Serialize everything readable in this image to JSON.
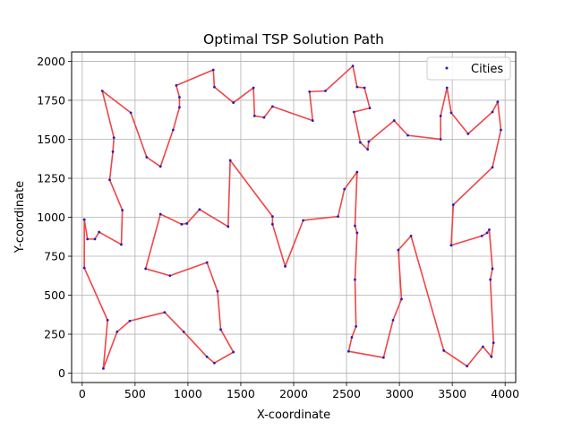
{
  "chart_data": {
    "type": "line",
    "title": "Optimal TSP Solution Path",
    "xlabel": "X-coordinate",
    "ylabel": "Y-coordinate",
    "xlim": [
      -100,
      4100
    ],
    "ylim": [
      -60,
      2060
    ],
    "xticks": [
      0,
      500,
      1000,
      1500,
      2000,
      2500,
      3000,
      3500,
      4000
    ],
    "yticks": [
      0,
      250,
      500,
      750,
      1000,
      1250,
      1500,
      1750,
      2000
    ],
    "grid": true,
    "legend": {
      "position": "upper right",
      "entries": [
        "Cities"
      ]
    },
    "colors": {
      "path": "#f03b3b",
      "cities": "#1f1fbf",
      "grid": "#b0b0b0"
    },
    "series": [
      {
        "name": "Cities",
        "points": [
          [
            20,
            985
          ],
          [
            50,
            860
          ],
          [
            120,
            860
          ],
          [
            160,
            905
          ],
          [
            370,
            825
          ],
          [
            380,
            1045
          ],
          [
            260,
            1240
          ],
          [
            290,
            1420
          ],
          [
            300,
            1510
          ],
          [
            190,
            1810
          ],
          [
            460,
            1670
          ],
          [
            610,
            1385
          ],
          [
            740,
            1325
          ],
          [
            860,
            1560
          ],
          [
            920,
            1705
          ],
          [
            920,
            1770
          ],
          [
            890,
            1845
          ],
          [
            1240,
            1945
          ],
          [
            1250,
            1835
          ],
          [
            1430,
            1735
          ],
          [
            1620,
            1830
          ],
          [
            1630,
            1650
          ],
          [
            1720,
            1640
          ],
          [
            1800,
            1710
          ],
          [
            2180,
            1620
          ],
          [
            2150,
            1805
          ],
          [
            2300,
            1810
          ],
          [
            2560,
            1970
          ],
          [
            2600,
            1835
          ],
          [
            2670,
            1830
          ],
          [
            2720,
            1700
          ],
          [
            2570,
            1675
          ],
          [
            2630,
            1480
          ],
          [
            2700,
            1435
          ],
          [
            2710,
            1485
          ],
          [
            2950,
            1620
          ],
          [
            3080,
            1525
          ],
          [
            3390,
            1500
          ],
          [
            3390,
            1650
          ],
          [
            3450,
            1830
          ],
          [
            3490,
            1670
          ],
          [
            3650,
            1535
          ],
          [
            3880,
            1675
          ],
          [
            3930,
            1740
          ],
          [
            3960,
            1560
          ],
          [
            3880,
            1320
          ],
          [
            3510,
            1080
          ],
          [
            3490,
            820
          ],
          [
            3780,
            880
          ],
          [
            3830,
            900
          ],
          [
            3850,
            920
          ],
          [
            3880,
            670
          ],
          [
            3860,
            600
          ],
          [
            3890,
            195
          ],
          [
            3870,
            105
          ],
          [
            3790,
            170
          ],
          [
            3640,
            45
          ],
          [
            3420,
            145
          ],
          [
            3110,
            880
          ],
          [
            2990,
            790
          ],
          [
            3020,
            475
          ],
          [
            2940,
            340
          ],
          [
            2850,
            100
          ],
          [
            2520,
            140
          ],
          [
            2550,
            230
          ],
          [
            2590,
            300
          ],
          [
            2580,
            600
          ],
          [
            2600,
            900
          ],
          [
            2580,
            945
          ],
          [
            2600,
            1290
          ],
          [
            2480,
            1180
          ],
          [
            2420,
            1005
          ],
          [
            2090,
            980
          ],
          [
            1920,
            685
          ],
          [
            1800,
            955
          ],
          [
            1800,
            1005
          ],
          [
            1400,
            1365
          ],
          [
            1380,
            940
          ],
          [
            1110,
            1050
          ],
          [
            990,
            960
          ],
          [
            940,
            955
          ],
          [
            740,
            1020
          ],
          [
            600,
            670
          ],
          [
            830,
            625
          ],
          [
            1180,
            710
          ],
          [
            1280,
            525
          ],
          [
            1310,
            280
          ],
          [
            1430,
            135
          ],
          [
            1250,
            65
          ],
          [
            1180,
            105
          ],
          [
            960,
            265
          ],
          [
            780,
            390
          ],
          [
            450,
            335
          ],
          [
            330,
            265
          ],
          [
            200,
            30
          ],
          [
            240,
            340
          ],
          [
            20,
            675
          ],
          [
            20,
            985
          ]
        ]
      }
    ]
  }
}
